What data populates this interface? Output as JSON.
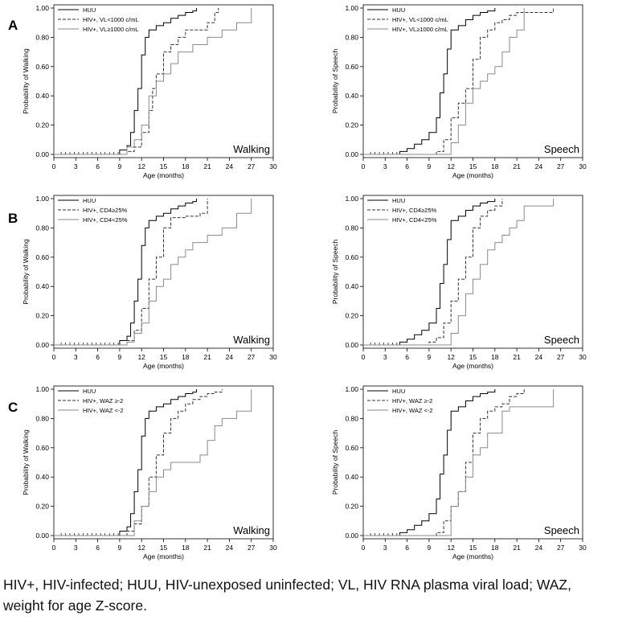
{
  "panel_labels": [
    "A",
    "B",
    "C"
  ],
  "caption": "HIV+, HIV-infected; HUU, HIV-unexposed uninfected; VL, HIV RNA plasma viral load; WAZ, weight for age Z-score.",
  "colors": {
    "HUU": "#000000",
    "group2": "#333333",
    "group3": "#8a8a8a"
  },
  "chart_data": [
    {
      "id": "A-walking",
      "type": "line",
      "panel": "A",
      "title": "Walking",
      "xlabel": "Age (months)",
      "ylabel": "Probability of Walking",
      "xlim": [
        0,
        30
      ],
      "ylim": [
        0,
        1
      ],
      "xticks": [
        "0",
        "3",
        "6",
        "9",
        "12",
        "15",
        "18",
        "21",
        "24",
        "27",
        "30"
      ],
      "yticks": [
        "0.00",
        "0.20",
        "0.40",
        "0.60",
        "0.80",
        "1.00"
      ],
      "legend_position": "top-left",
      "series": [
        {
          "name": "HUU",
          "style": "solid",
          "color_key": "HUU",
          "x": [
            0,
            9,
            10,
            10.5,
            11,
            11.5,
            12,
            12.5,
            13,
            14,
            15,
            16,
            17,
            18,
            19,
            19.5
          ],
          "y": [
            0,
            0.03,
            0.06,
            0.15,
            0.3,
            0.45,
            0.68,
            0.8,
            0.85,
            0.88,
            0.9,
            0.93,
            0.95,
            0.97,
            0.98,
            1.0
          ]
        },
        {
          "name": "HIV+, VL<1000 c/mL",
          "style": "dashed",
          "color_key": "group2",
          "x": [
            0,
            10,
            11,
            12,
            13,
            13.5,
            14,
            15,
            16,
            17,
            18,
            20,
            21,
            22,
            22.5
          ],
          "y": [
            0,
            0.02,
            0.05,
            0.15,
            0.3,
            0.45,
            0.55,
            0.7,
            0.75,
            0.8,
            0.85,
            0.85,
            0.9,
            0.97,
            1.0
          ]
        },
        {
          "name": "HIV+, VL≥1000 c/mL",
          "style": "solid",
          "color_key": "group3",
          "x": [
            0,
            10,
            11,
            12,
            13,
            14,
            15,
            16,
            17,
            19,
            21,
            23,
            25,
            27
          ],
          "y": [
            0,
            0.05,
            0.1,
            0.2,
            0.4,
            0.5,
            0.55,
            0.62,
            0.7,
            0.75,
            0.8,
            0.85,
            0.9,
            1.0
          ]
        }
      ]
    },
    {
      "id": "A-speech",
      "type": "line",
      "panel": "A",
      "title": "Speech",
      "xlabel": "Age (months)",
      "ylabel": "Probability of Speech",
      "xlim": [
        0,
        30
      ],
      "ylim": [
        0,
        1
      ],
      "xticks": [
        "0",
        "3",
        "6",
        "9",
        "12",
        "15",
        "18",
        "21",
        "24",
        "27",
        "30"
      ],
      "yticks": [
        "0.00",
        "0.20",
        "0.40",
        "0.60",
        "0.80",
        "1.00"
      ],
      "legend_position": "top-left",
      "series": [
        {
          "name": "HUU",
          "style": "solid",
          "color_key": "HUU",
          "x": [
            0,
            5,
            6,
            7,
            8,
            9,
            10,
            10.5,
            11,
            11.5,
            12,
            13,
            14,
            15,
            16,
            17,
            18
          ],
          "y": [
            0,
            0.02,
            0.04,
            0.07,
            0.1,
            0.15,
            0.25,
            0.42,
            0.55,
            0.72,
            0.85,
            0.88,
            0.92,
            0.95,
            0.97,
            0.98,
            1.0
          ]
        },
        {
          "name": "HIV+, VL<1000 c/mL",
          "style": "dashed",
          "color_key": "group2",
          "x": [
            0,
            10,
            11,
            12,
            13,
            14,
            15,
            16,
            17,
            18,
            19,
            20,
            21,
            22,
            26
          ],
          "y": [
            0,
            0.02,
            0.1,
            0.25,
            0.35,
            0.45,
            0.65,
            0.8,
            0.85,
            0.9,
            0.92,
            0.95,
            0.97,
            0.97,
            1.0
          ]
        },
        {
          "name": "HIV+, VL≥1000 c/mL",
          "style": "solid",
          "color_key": "group3",
          "x": [
            0,
            12,
            13,
            14,
            15,
            16,
            17,
            18,
            19,
            20,
            21,
            22
          ],
          "y": [
            0,
            0.08,
            0.2,
            0.35,
            0.45,
            0.5,
            0.55,
            0.6,
            0.7,
            0.8,
            0.85,
            1.0
          ]
        }
      ]
    },
    {
      "id": "B-walking",
      "type": "line",
      "panel": "B",
      "title": "Walking",
      "xlabel": "Age (months)",
      "ylabel": "Probability of Walking",
      "xlim": [
        0,
        30
      ],
      "ylim": [
        0,
        1
      ],
      "xticks": [
        "0",
        "3",
        "6",
        "9",
        "12",
        "15",
        "18",
        "21",
        "24",
        "27",
        "30"
      ],
      "yticks": [
        "0.00",
        "0.20",
        "0.40",
        "0.60",
        "0.80",
        "1.00"
      ],
      "legend_position": "top-left",
      "series": [
        {
          "name": "HUU",
          "style": "solid",
          "color_key": "HUU",
          "x": [
            0,
            9,
            10,
            10.5,
            11,
            11.5,
            12,
            12.5,
            13,
            14,
            15,
            16,
            17,
            18,
            19,
            19.5
          ],
          "y": [
            0,
            0.03,
            0.06,
            0.15,
            0.3,
            0.45,
            0.68,
            0.8,
            0.85,
            0.88,
            0.9,
            0.93,
            0.95,
            0.97,
            0.98,
            1.0
          ]
        },
        {
          "name": "HIV+, CD4≥25%",
          "style": "dashed",
          "color_key": "group2",
          "x": [
            0,
            10,
            11,
            12,
            13,
            14,
            15,
            16,
            17,
            18,
            20,
            21
          ],
          "y": [
            0,
            0.03,
            0.1,
            0.25,
            0.45,
            0.6,
            0.8,
            0.87,
            0.87,
            0.88,
            0.9,
            1.0
          ]
        },
        {
          "name": "HIV+, CD4<25%",
          "style": "solid",
          "color_key": "group3",
          "x": [
            0,
            10,
            11,
            12,
            13,
            14,
            15,
            16,
            17,
            18,
            19,
            21,
            23,
            25,
            27
          ],
          "y": [
            0,
            0.02,
            0.08,
            0.15,
            0.3,
            0.4,
            0.45,
            0.55,
            0.6,
            0.65,
            0.7,
            0.75,
            0.8,
            0.9,
            1.0
          ]
        }
      ]
    },
    {
      "id": "B-speech",
      "type": "line",
      "panel": "B",
      "title": "Speech",
      "xlabel": "Age (months)",
      "ylabel": "Probability of Speech",
      "xlim": [
        0,
        30
      ],
      "ylim": [
        0,
        1
      ],
      "xticks": [
        "0",
        "3",
        "6",
        "9",
        "12",
        "15",
        "18",
        "21",
        "24",
        "27",
        "30"
      ],
      "yticks": [
        "0.00",
        "0.20",
        "0.40",
        "0.60",
        "0.80",
        "1.00"
      ],
      "legend_position": "top-left",
      "series": [
        {
          "name": "HUU",
          "style": "solid",
          "color_key": "HUU",
          "x": [
            0,
            5,
            6,
            7,
            8,
            9,
            10,
            10.5,
            11,
            11.5,
            12,
            13,
            14,
            15,
            16,
            17,
            18
          ],
          "y": [
            0,
            0.02,
            0.04,
            0.07,
            0.1,
            0.15,
            0.25,
            0.42,
            0.55,
            0.72,
            0.85,
            0.88,
            0.92,
            0.95,
            0.97,
            0.98,
            1.0
          ]
        },
        {
          "name": "HIV+, CD4≥25%",
          "style": "dashed",
          "color_key": "group2",
          "x": [
            0,
            9,
            10,
            11,
            12,
            13,
            14,
            15,
            16,
            17,
            18,
            19
          ],
          "y": [
            0,
            0.02,
            0.05,
            0.15,
            0.3,
            0.45,
            0.6,
            0.8,
            0.88,
            0.92,
            0.95,
            1.0
          ]
        },
        {
          "name": "HIV+, CD4<25%",
          "style": "solid",
          "color_key": "group3",
          "x": [
            0,
            12,
            13,
            14,
            15,
            16,
            17,
            18,
            19,
            20,
            21,
            22,
            26
          ],
          "y": [
            0,
            0.08,
            0.2,
            0.35,
            0.45,
            0.55,
            0.65,
            0.7,
            0.75,
            0.8,
            0.85,
            0.95,
            1.0
          ]
        }
      ]
    },
    {
      "id": "C-walking",
      "type": "line",
      "panel": "C",
      "title": "Walking",
      "xlabel": "Age (months)",
      "ylabel": "Probability of Walking",
      "xlim": [
        0,
        30
      ],
      "ylim": [
        0,
        1
      ],
      "xticks": [
        "0",
        "3",
        "6",
        "9",
        "12",
        "15",
        "18",
        "21",
        "24",
        "27",
        "30"
      ],
      "yticks": [
        "0.00",
        "0.20",
        "0.40",
        "0.60",
        "0.80",
        "1.00"
      ],
      "legend_position": "top-left",
      "series": [
        {
          "name": "HUU",
          "style": "solid",
          "color_key": "HUU",
          "x": [
            0,
            9,
            10,
            10.5,
            11,
            11.5,
            12,
            12.5,
            13,
            14,
            15,
            16,
            17,
            18,
            19,
            19.5
          ],
          "y": [
            0,
            0.03,
            0.06,
            0.15,
            0.3,
            0.45,
            0.68,
            0.8,
            0.85,
            0.88,
            0.9,
            0.93,
            0.95,
            0.97,
            0.98,
            1.0
          ]
        },
        {
          "name": "HIV+, WAZ ≥-2",
          "style": "dashed",
          "color_key": "group2",
          "x": [
            0,
            10,
            11,
            12,
            13,
            14,
            15,
            16,
            17,
            18,
            19,
            20,
            21,
            22,
            23
          ],
          "y": [
            0,
            0.03,
            0.08,
            0.2,
            0.4,
            0.55,
            0.7,
            0.8,
            0.85,
            0.9,
            0.93,
            0.95,
            0.97,
            0.98,
            1.0
          ]
        },
        {
          "name": "HIV+, WAZ <-2",
          "style": "solid",
          "color_key": "group3",
          "x": [
            0,
            11,
            12,
            13,
            14,
            15,
            16,
            18,
            20,
            21,
            22,
            23,
            25,
            27
          ],
          "y": [
            0,
            0.1,
            0.2,
            0.3,
            0.4,
            0.45,
            0.5,
            0.5,
            0.55,
            0.65,
            0.75,
            0.8,
            0.85,
            1.0
          ]
        }
      ]
    },
    {
      "id": "C-speech",
      "type": "line",
      "panel": "C",
      "title": "Speech",
      "xlabel": "Age (months)",
      "ylabel": "Probability of Speech",
      "xlim": [
        0,
        30
      ],
      "ylim": [
        0,
        1
      ],
      "xticks": [
        "0",
        "3",
        "6",
        "9",
        "12",
        "15",
        "18",
        "21",
        "24",
        "27",
        "30"
      ],
      "yticks": [
        "0.00",
        "0.20",
        "0.40",
        "0.60",
        "0.80",
        "1.00"
      ],
      "legend_position": "top-left",
      "series": [
        {
          "name": "HUU",
          "style": "solid",
          "color_key": "HUU",
          "x": [
            0,
            5,
            6,
            7,
            8,
            9,
            10,
            10.5,
            11,
            11.5,
            12,
            13,
            14,
            15,
            16,
            17,
            18
          ],
          "y": [
            0,
            0.02,
            0.04,
            0.07,
            0.1,
            0.15,
            0.25,
            0.42,
            0.55,
            0.72,
            0.85,
            0.88,
            0.92,
            0.95,
            0.97,
            0.98,
            1.0
          ]
        },
        {
          "name": "HIV+, WAZ ≥-2",
          "style": "dashed",
          "color_key": "group2",
          "x": [
            0,
            10,
            11,
            12,
            13,
            14,
            15,
            16,
            17,
            18,
            19,
            20,
            21,
            22
          ],
          "y": [
            0,
            0.02,
            0.1,
            0.2,
            0.3,
            0.5,
            0.7,
            0.8,
            0.85,
            0.88,
            0.9,
            0.95,
            0.97,
            1.0
          ]
        },
        {
          "name": "HIV+, WAZ <-2",
          "style": "solid",
          "color_key": "group3",
          "x": [
            0,
            12,
            13,
            14,
            15,
            16,
            17,
            19,
            20,
            26
          ],
          "y": [
            0,
            0.2,
            0.3,
            0.4,
            0.55,
            0.6,
            0.7,
            0.85,
            0.88,
            1.0
          ]
        }
      ]
    }
  ]
}
